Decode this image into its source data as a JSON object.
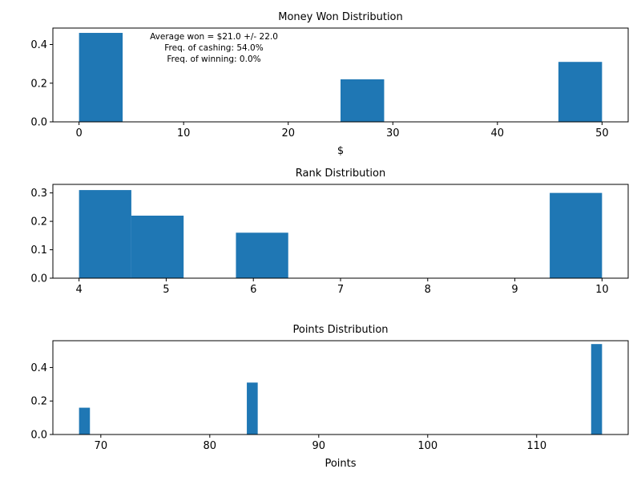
{
  "chart_data": [
    {
      "type": "bar",
      "title": "Money Won Distribution",
      "xlabel": "$",
      "ylabel": "",
      "xlim": [
        -2.5,
        52.5
      ],
      "ylim": [
        0,
        0.485
      ],
      "xticks": [
        0,
        10,
        20,
        30,
        40,
        50
      ],
      "xtick_labels": [
        "0",
        "10",
        "20",
        "30",
        "40",
        "50"
      ],
      "yticks": [
        0.0,
        0.2,
        0.4
      ],
      "ytick_labels": [
        "0.0",
        "0.2",
        "0.4"
      ],
      "bar_color": "#1f77b4",
      "bins": [
        {
          "x0": 0,
          "x1": 4.17,
          "value": 0.46
        },
        {
          "x0": 25,
          "x1": 29.17,
          "value": 0.22
        },
        {
          "x0": 45.83,
          "x1": 50,
          "value": 0.31
        }
      ],
      "annotations": [
        "Average won = $21.0 +/- 22.0",
        "Freq. of cashing: 54.0%",
        "Freq. of winning: 0.0%"
      ]
    },
    {
      "type": "bar",
      "title": "Rank Distribution",
      "xlabel": "",
      "ylabel": "",
      "xlim": [
        3.7,
        10.3
      ],
      "ylim": [
        0,
        0.33
      ],
      "xticks": [
        4,
        5,
        6,
        7,
        8,
        9,
        10
      ],
      "xtick_labels": [
        "4",
        "5",
        "6",
        "7",
        "8",
        "9",
        "10"
      ],
      "yticks": [
        0.0,
        0.1,
        0.2,
        0.3
      ],
      "ytick_labels": [
        "0.0",
        "0.1",
        "0.2",
        "0.3"
      ],
      "bar_color": "#1f77b4",
      "bins": [
        {
          "x0": 4.0,
          "x1": 4.6,
          "value": 0.31
        },
        {
          "x0": 4.6,
          "x1": 5.2,
          "value": 0.22
        },
        {
          "x0": 5.8,
          "x1": 6.4,
          "value": 0.16
        },
        {
          "x0": 9.4,
          "x1": 10.0,
          "value": 0.3
        }
      ]
    },
    {
      "type": "bar",
      "title": "Points Distribution",
      "xlabel": "Points",
      "ylabel": "",
      "xlim": [
        65.6,
        118.4
      ],
      "ylim": [
        0,
        0.56
      ],
      "xticks": [
        70,
        80,
        90,
        100,
        110
      ],
      "xtick_labels": [
        "70",
        "80",
        "90",
        "100",
        "110"
      ],
      "yticks": [
        0.0,
        0.2,
        0.4
      ],
      "ytick_labels": [
        "0.0",
        "0.2",
        "0.4"
      ],
      "bar_color": "#1f77b4",
      "bins": [
        {
          "x0": 68.0,
          "x1": 69.0,
          "value": 0.16
        },
        {
          "x0": 83.4,
          "x1": 84.4,
          "value": 0.31
        },
        {
          "x0": 115.0,
          "x1": 116.0,
          "value": 0.54
        }
      ]
    }
  ]
}
